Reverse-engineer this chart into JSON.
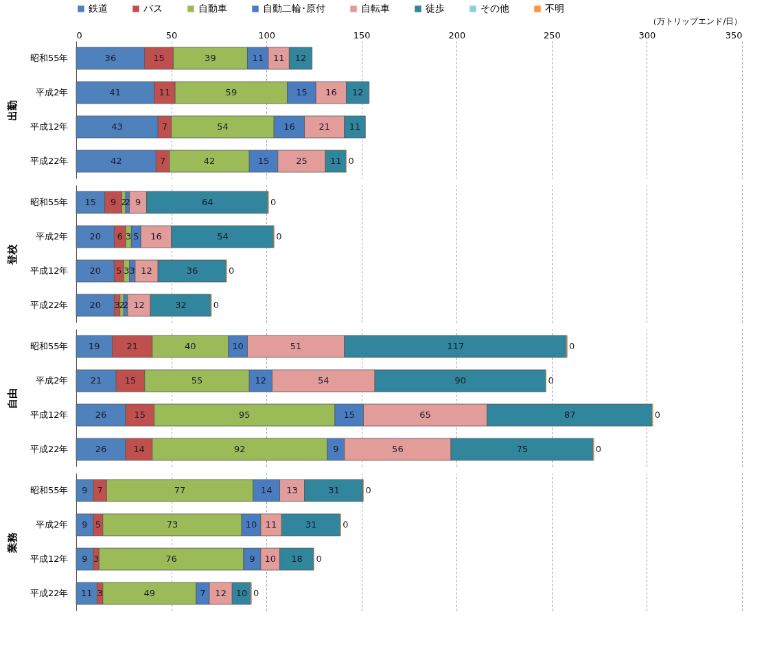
{
  "chart_data": [
    {
      "type": "bar",
      "orientation": "horizontal",
      "stacked": true,
      "ylabel": "出勤",
      "xlabel": "（万トリップエンド/日）",
      "categories": [
        "昭和55年",
        "平成2年",
        "平成12年",
        "平成22年"
      ],
      "xlim": [
        0,
        350
      ],
      "xticks": [
        0,
        50,
        100,
        150,
        200,
        250,
        300,
        350
      ],
      "grid": "x",
      "legend": "top",
      "data_labels": true,
      "series": [
        {
          "name": "鉄道",
          "color": "#4f81bd",
          "values": [
            36,
            41,
            43,
            42
          ]
        },
        {
          "name": "バス",
          "color": "#c0504d",
          "values": [
            15,
            11,
            7,
            7
          ]
        },
        {
          "name": "自動車",
          "color": "#9bbb59",
          "values": [
            39,
            59,
            54,
            42
          ]
        },
        {
          "name": "自動二輪･原付",
          "color": "#4a7dc0",
          "values": [
            11,
            15,
            16,
            15
          ]
        },
        {
          "name": "自転車",
          "color": "#e29d9b",
          "values": [
            11,
            16,
            21,
            25
          ]
        },
        {
          "name": "徒歩",
          "color": "#31859c",
          "values": [
            12,
            12,
            11,
            11
          ]
        },
        {
          "name": "その他",
          "color": "#93cddd",
          "values": [
            null,
            null,
            null,
            null
          ]
        },
        {
          "name": "不明",
          "color": "#f79646",
          "values": [
            null,
            null,
            null,
            0
          ]
        }
      ]
    },
    {
      "type": "bar",
      "orientation": "horizontal",
      "stacked": true,
      "ylabel": "登校",
      "categories": [
        "昭和55年",
        "平成2年",
        "平成12年",
        "平成22年"
      ],
      "xlim": [
        0,
        350
      ],
      "xticks": [
        0,
        50,
        100,
        150,
        200,
        250,
        300,
        350
      ],
      "grid": "x",
      "tick_labels": "y",
      "data_labels": true,
      "series": [
        {
          "name": "鉄道",
          "color": "#4f81bd",
          "values": [
            15,
            20,
            20,
            20
          ]
        },
        {
          "name": "バス",
          "color": "#c0504d",
          "values": [
            9,
            6,
            5,
            3
          ]
        },
        {
          "name": "自動車",
          "color": "#9bbb59",
          "values": [
            2,
            3,
            3,
            2
          ]
        },
        {
          "name": "自動二輪･原付",
          "color": "#4a7dc0",
          "values": [
            2,
            5,
            3,
            2
          ]
        },
        {
          "name": "自転車",
          "color": "#e29d9b",
          "values": [
            9,
            16,
            12,
            12
          ]
        },
        {
          "name": "徒歩",
          "color": "#31859c",
          "values": [
            64,
            54,
            36,
            32
          ]
        },
        {
          "name": "不明",
          "color": "#f79646",
          "values": [
            0,
            0,
            0,
            0
          ]
        }
      ]
    },
    {
      "type": "bar",
      "orientation": "horizontal",
      "stacked": true,
      "ylabel": "自由",
      "categories": [
        "昭和55年",
        "平成2年",
        "平成12年",
        "平成22年"
      ],
      "xlim": [
        0,
        350
      ],
      "xticks": [
        0,
        50,
        100,
        150,
        200,
        250,
        300,
        350
      ],
      "grid": "x",
      "tick_labels": "y",
      "data_labels": true,
      "series": [
        {
          "name": "鉄道",
          "color": "#4f81bd",
          "values": [
            19,
            21,
            26,
            26
          ]
        },
        {
          "name": "バス",
          "color": "#c0504d",
          "values": [
            21,
            15,
            15,
            14
          ]
        },
        {
          "name": "自動車",
          "color": "#9bbb59",
          "values": [
            40,
            55,
            95,
            92
          ]
        },
        {
          "name": "自動二輪･原付",
          "color": "#4a7dc0",
          "values": [
            10,
            12,
            15,
            9
          ]
        },
        {
          "name": "自転車",
          "color": "#e29d9b",
          "values": [
            51,
            54,
            65,
            56
          ]
        },
        {
          "name": "徒歩",
          "color": "#31859c",
          "values": [
            117,
            90,
            87,
            75
          ]
        },
        {
          "name": "不明",
          "color": "#f79646",
          "values": [
            0,
            0,
            0,
            0
          ]
        }
      ]
    },
    {
      "type": "bar",
      "orientation": "horizontal",
      "stacked": true,
      "ylabel": "業務",
      "categories": [
        "昭和55年",
        "平成2年",
        "平成12年",
        "平成22年"
      ],
      "xlim": [
        0,
        350
      ],
      "xticks": [
        0,
        50,
        100,
        150,
        200,
        250,
        300,
        350
      ],
      "grid": "x",
      "tick_labels": "y",
      "data_labels": true,
      "series": [
        {
          "name": "鉄道",
          "color": "#4f81bd",
          "values": [
            9,
            9,
            9,
            11
          ]
        },
        {
          "name": "バス",
          "color": "#c0504d",
          "values": [
            7,
            5,
            3,
            3
          ]
        },
        {
          "name": "自動車",
          "color": "#9bbb59",
          "values": [
            77,
            73,
            76,
            49
          ]
        },
        {
          "name": "自動二輪･原付",
          "color": "#4a7dc0",
          "values": [
            14,
            10,
            9,
            7
          ]
        },
        {
          "name": "自転車",
          "color": "#e29d9b",
          "values": [
            13,
            11,
            10,
            12
          ]
        },
        {
          "name": "徒歩",
          "color": "#31859c",
          "values": [
            31,
            31,
            18,
            10
          ]
        },
        {
          "name": "不明",
          "color": "#f79646",
          "values": [
            0,
            0,
            0,
            0
          ]
        }
      ]
    }
  ]
}
